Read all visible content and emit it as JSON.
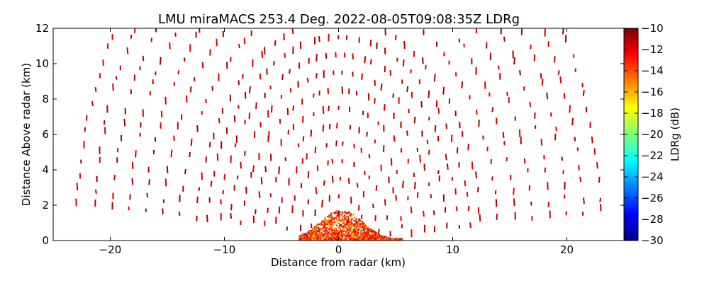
{
  "chart_data": {
    "type": "heatmap",
    "title": "LMU miraMACS 253.4 Deg. 2022-08-05T09:08:35Z  LDRg",
    "xlabel": "Distance from radar (km)",
    "ylabel": "Distance Above radar  (km)",
    "xlim": [
      -25,
      25
    ],
    "ylim": [
      0,
      12
    ],
    "xticks": [
      -20,
      -10,
      0,
      10,
      20
    ],
    "yticks": [
      0,
      2,
      4,
      6,
      8,
      10,
      12
    ],
    "colorbar": {
      "label": "LDRg (dB)",
      "range": [
        -30,
        -10
      ],
      "ticks": [
        -10,
        -12,
        -14,
        -16,
        -18,
        -20,
        -22,
        -24,
        -26,
        -28,
        -30
      ],
      "colormap": "jet"
    },
    "ground_clutter": {
      "x_range_km": [
        -3.5,
        5.5
      ],
      "max_height_km": 1.7,
      "dominant_ldr_db": -11
    },
    "scatter_rings_km": [
      1.5,
      2.5,
      3.5,
      4.5,
      5.5,
      6.5,
      7.5,
      8.5,
      9.5,
      10.5,
      11.5,
      12.5,
      14,
      15.5,
      17,
      18.5,
      20,
      21.5,
      23
    ],
    "dominant_ldr_db": -10.5,
    "grid": false,
    "legend": "none"
  }
}
